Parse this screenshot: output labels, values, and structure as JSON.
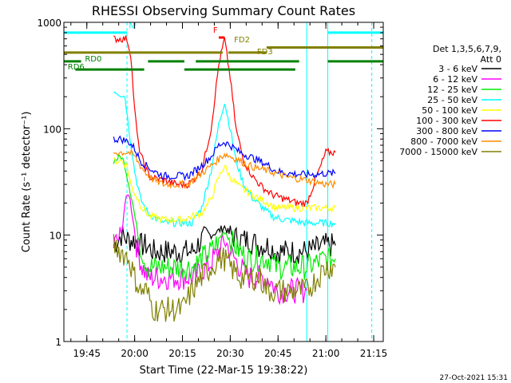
{
  "chart_data": {
    "type": "line",
    "title": "RHESSI Observing Summary Count Rates",
    "xlabel": "Start Time (22-Mar-15 19:38:22)",
    "ylabel": "Count Rate (s⁻¹ detector⁻¹)",
    "yscale": "log",
    "ylim": [
      1,
      1000
    ],
    "xlim_minutes": [
      19.63,
      21.3
    ],
    "x_ticks": [
      "19:45",
      "20:00",
      "20:15",
      "20:30",
      "20:45",
      "21:00",
      "21:15"
    ],
    "y_ticks": [
      "1",
      "10",
      "100",
      "1000"
    ],
    "date_stamp": "27-Oct-2021 15:31",
    "legend_header": [
      "Det 1,3,5,6,7,9,",
      "Att 0"
    ],
    "legend_position": "right",
    "series": [
      {
        "name": "3 - 6 keV",
        "color": "#000000",
        "points": [
          [
            19.89,
            8
          ],
          [
            19.93,
            10
          ],
          [
            19.97,
            9
          ],
          [
            20.0,
            9
          ],
          [
            20.03,
            8
          ],
          [
            20.06,
            8
          ],
          [
            20.1,
            7
          ],
          [
            20.15,
            7
          ],
          [
            20.22,
            7
          ],
          [
            20.3,
            7
          ],
          [
            20.35,
            9
          ],
          [
            20.4,
            10
          ],
          [
            20.44,
            11
          ],
          [
            20.47,
            12
          ],
          [
            20.5,
            10
          ],
          [
            20.55,
            9
          ],
          [
            20.6,
            9
          ],
          [
            20.65,
            8
          ],
          [
            20.7,
            8
          ],
          [
            20.74,
            7
          ],
          [
            20.8,
            7
          ],
          [
            20.9,
            7
          ],
          [
            21.0,
            8
          ],
          [
            21.05,
            8
          ]
        ]
      },
      {
        "name": "6 - 12 keV",
        "color": "#ff00ff",
        "points": [
          [
            19.89,
            8
          ],
          [
            19.93,
            10
          ],
          [
            19.95,
            20
          ],
          [
            19.97,
            25
          ],
          [
            19.99,
            15
          ],
          [
            20.01,
            8
          ],
          [
            20.04,
            5
          ],
          [
            20.07,
            4
          ],
          [
            20.1,
            4
          ],
          [
            20.2,
            4
          ],
          [
            20.3,
            4
          ],
          [
            20.38,
            5
          ],
          [
            20.44,
            7
          ],
          [
            20.47,
            9
          ],
          [
            20.5,
            7
          ],
          [
            20.55,
            5
          ],
          [
            20.6,
            4
          ],
          [
            20.7,
            4
          ],
          [
            20.74,
            3
          ],
          [
            20.9,
            3
          ]
        ]
      },
      {
        "name": "12 - 25 keV",
        "color": "#00ee00",
        "points": [
          [
            19.89,
            50
          ],
          [
            19.93,
            55
          ],
          [
            19.95,
            45
          ],
          [
            19.97,
            30
          ],
          [
            19.99,
            20
          ],
          [
            20.01,
            12
          ],
          [
            20.03,
            8
          ],
          [
            20.05,
            6
          ],
          [
            20.07,
            5
          ],
          [
            20.15,
            5
          ],
          [
            20.25,
            5
          ],
          [
            20.3,
            5
          ],
          [
            20.35,
            6
          ],
          [
            20.4,
            7
          ],
          [
            20.44,
            9
          ],
          [
            20.47,
            11
          ],
          [
            20.5,
            9
          ],
          [
            20.55,
            7
          ],
          [
            20.6,
            6
          ],
          [
            20.65,
            6
          ],
          [
            20.7,
            6
          ],
          [
            20.74,
            5
          ],
          [
            20.9,
            5
          ],
          [
            21.0,
            6
          ],
          [
            21.05,
            6
          ]
        ]
      },
      {
        "name": "25 - 50 keV",
        "color": "#00ffff",
        "points": [
          [
            19.89,
            230
          ],
          [
            19.93,
            210
          ],
          [
            19.95,
            200
          ],
          [
            19.97,
            100
          ],
          [
            20.0,
            40
          ],
          [
            20.03,
            22
          ],
          [
            20.07,
            16
          ],
          [
            20.15,
            13
          ],
          [
            20.25,
            13
          ],
          [
            20.3,
            13
          ],
          [
            20.35,
            18
          ],
          [
            20.4,
            40
          ],
          [
            20.44,
            110
          ],
          [
            20.47,
            180
          ],
          [
            20.5,
            100
          ],
          [
            20.53,
            50
          ],
          [
            20.57,
            30
          ],
          [
            20.62,
            22
          ],
          [
            20.67,
            18
          ],
          [
            20.72,
            15
          ],
          [
            20.78,
            14
          ],
          [
            20.9,
            13
          ],
          [
            21.0,
            13
          ],
          [
            21.05,
            13
          ]
        ]
      },
      {
        "name": "50 - 100 keV",
        "color": "#ffff00",
        "points": [
          [
            19.89,
            50
          ],
          [
            19.93,
            50
          ],
          [
            19.96,
            45
          ],
          [
            19.98,
            30
          ],
          [
            20.0,
            25
          ],
          [
            20.04,
            18
          ],
          [
            20.08,
            15
          ],
          [
            20.15,
            14
          ],
          [
            20.25,
            14
          ],
          [
            20.3,
            15
          ],
          [
            20.35,
            16
          ],
          [
            20.4,
            22
          ],
          [
            20.44,
            35
          ],
          [
            20.47,
            45
          ],
          [
            20.5,
            35
          ],
          [
            20.55,
            28
          ],
          [
            20.6,
            25
          ],
          [
            20.65,
            22
          ],
          [
            20.7,
            20
          ],
          [
            20.74,
            18
          ],
          [
            20.9,
            18
          ],
          [
            21.0,
            18
          ],
          [
            21.05,
            18
          ]
        ]
      },
      {
        "name": "100 - 300 keV",
        "color": "#ff0000",
        "points": [
          [
            19.89,
            700
          ],
          [
            19.93,
            700
          ],
          [
            19.96,
            700
          ],
          [
            19.98,
            500
          ],
          [
            20.0,
            150
          ],
          [
            20.02,
            70
          ],
          [
            20.05,
            45
          ],
          [
            20.08,
            35
          ],
          [
            20.15,
            33
          ],
          [
            20.22,
            30
          ],
          [
            20.28,
            30
          ],
          [
            20.35,
            40
          ],
          [
            20.4,
            100
          ],
          [
            20.44,
            400
          ],
          [
            20.47,
            700
          ],
          [
            20.5,
            300
          ],
          [
            20.53,
            100
          ],
          [
            20.57,
            50
          ],
          [
            20.62,
            35
          ],
          [
            20.67,
            28
          ],
          [
            20.72,
            24
          ],
          [
            20.78,
            22
          ],
          [
            20.85,
            20
          ],
          [
            20.9,
            20
          ],
          [
            21.0,
            60
          ],
          [
            21.05,
            60
          ]
        ]
      },
      {
        "name": "300 - 800 keV",
        "color": "#0000ff",
        "points": [
          [
            19.89,
            80
          ],
          [
            19.93,
            80
          ],
          [
            19.97,
            75
          ],
          [
            20.0,
            65
          ],
          [
            20.03,
            50
          ],
          [
            20.06,
            45
          ],
          [
            20.1,
            40
          ],
          [
            20.15,
            36
          ],
          [
            20.22,
            36
          ],
          [
            20.28,
            36
          ],
          [
            20.35,
            45
          ],
          [
            20.4,
            55
          ],
          [
            20.44,
            70
          ],
          [
            20.47,
            75
          ],
          [
            20.5,
            70
          ],
          [
            20.55,
            60
          ],
          [
            20.6,
            55
          ],
          [
            20.65,
            50
          ],
          [
            20.7,
            45
          ],
          [
            20.74,
            40
          ],
          [
            20.8,
            38
          ],
          [
            20.9,
            37
          ],
          [
            21.0,
            38
          ],
          [
            21.05,
            38
          ]
        ]
      },
      {
        "name": "800 - 7000 keV",
        "color": "#ff8c00",
        "points": [
          [
            19.89,
            60
          ],
          [
            19.93,
            60
          ],
          [
            19.97,
            60
          ],
          [
            20.0,
            55
          ],
          [
            20.03,
            45
          ],
          [
            20.06,
            38
          ],
          [
            20.1,
            33
          ],
          [
            20.15,
            30
          ],
          [
            20.22,
            30
          ],
          [
            20.28,
            30
          ],
          [
            20.35,
            38
          ],
          [
            20.4,
            45
          ],
          [
            20.44,
            52
          ],
          [
            20.47,
            58
          ],
          [
            20.5,
            55
          ],
          [
            20.55,
            50
          ],
          [
            20.6,
            45
          ],
          [
            20.65,
            42
          ],
          [
            20.7,
            40
          ],
          [
            20.74,
            38
          ],
          [
            20.8,
            35
          ],
          [
            20.9,
            33
          ],
          [
            21.0,
            30
          ],
          [
            21.05,
            30
          ]
        ]
      },
      {
        "name": "7000 - 15000 keV",
        "color": "#808000",
        "points": [
          [
            19.89,
            8
          ],
          [
            19.93,
            7
          ],
          [
            19.97,
            6
          ],
          [
            20.0,
            4
          ],
          [
            20.03,
            3
          ],
          [
            20.06,
            3
          ],
          [
            20.1,
            2
          ],
          [
            20.15,
            2
          ],
          [
            20.2,
            2
          ],
          [
            20.25,
            2
          ],
          [
            20.3,
            3
          ],
          [
            20.35,
            4
          ],
          [
            20.4,
            5
          ],
          [
            20.44,
            6
          ],
          [
            20.47,
            6
          ],
          [
            20.5,
            5
          ],
          [
            20.55,
            4
          ],
          [
            20.6,
            4
          ],
          [
            20.65,
            4
          ],
          [
            20.7,
            3
          ],
          [
            20.74,
            3
          ],
          [
            20.9,
            3
          ],
          [
            21.0,
            5
          ],
          [
            21.05,
            5
          ]
        ]
      }
    ],
    "annotations": [
      {
        "text": "F",
        "color": "#ff0000",
        "x": 20.41,
        "y": 800
      },
      {
        "text": "FD2",
        "color": "#808000",
        "x": 20.52,
        "y": 650
      },
      {
        "text": "FD3",
        "color": "#808000",
        "x": 20.64,
        "y": 500
      },
      {
        "text": "RD0",
        "color": "#008000",
        "x": 19.74,
        "y": 430
      },
      {
        "text": "RD6",
        "color": "#008000",
        "x": 19.65,
        "y": 360
      },
      {
        "text": "N",
        "color": "#00ffff",
        "x": 19.97,
        "y": 880
      }
    ],
    "state_bars": [
      {
        "name": "night",
        "color": "#00ffff",
        "y": 800,
        "segments": [
          [
            19.63,
            19.96
          ],
          [
            21.01,
            21.3
          ]
        ]
      },
      {
        "name": "flare",
        "color": "#ff0000",
        "y": 720,
        "segments": [
          [
            20.44,
            20.47
          ]
        ]
      },
      {
        "name": "decimation-olive",
        "color": "#808000",
        "y": 520,
        "segments": [
          [
            19.63,
            20.46
          ],
          [
            20.49,
            20.69
          ]
        ]
      },
      {
        "name": "decimation-olive-2",
        "color": "#808000",
        "y": 580,
        "segments": [
          [
            20.69,
            21.3
          ]
        ]
      },
      {
        "name": "decimation-green-1",
        "color": "#008000",
        "y": 430,
        "segments": [
          [
            19.63,
            19.72
          ],
          [
            20.07,
            20.26
          ],
          [
            20.32,
            20.86
          ],
          [
            21.01,
            21.3
          ]
        ]
      },
      {
        "name": "decimation-green-2",
        "color": "#008000",
        "y": 360,
        "segments": [
          [
            19.69,
            20.05
          ],
          [
            20.26,
            20.84
          ]
        ]
      }
    ],
    "vlines": [
      {
        "x": 19.63,
        "color": "#00ffff",
        "style": "solid"
      },
      {
        "x": 19.96,
        "color": "#00ffff",
        "style": "dashed"
      },
      {
        "x": 20.9,
        "color": "#00ffff",
        "style": "solid"
      },
      {
        "x": 21.01,
        "color": "#00ffff",
        "style": "solid"
      },
      {
        "x": 21.24,
        "color": "#00ffff",
        "style": "dashed"
      }
    ]
  }
}
